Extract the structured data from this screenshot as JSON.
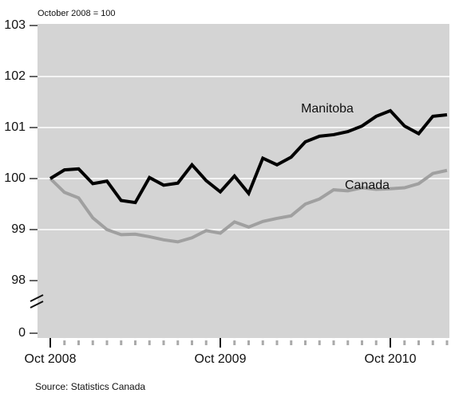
{
  "chart_data": {
    "type": "line",
    "y_label": "October 2008 = 100",
    "source": "Source: Statistics Canada",
    "categories": [
      "Oct 2008",
      null,
      null,
      null,
      null,
      null,
      null,
      null,
      null,
      null,
      null,
      null,
      "Oct 2009",
      null,
      null,
      null,
      null,
      null,
      null,
      null,
      null,
      null,
      null,
      null,
      "Oct 2010",
      null,
      null,
      null,
      null
    ],
    "series": [
      {
        "name": "Manitoba",
        "color": "#000000",
        "values": [
          100.0,
          100.17,
          100.19,
          99.9,
          99.95,
          99.57,
          99.53,
          100.02,
          99.87,
          99.91,
          100.27,
          99.96,
          99.74,
          100.05,
          99.71,
          100.4,
          100.27,
          100.42,
          100.72,
          100.83,
          100.86,
          100.92,
          101.03,
          101.22,
          101.33,
          101.03,
          100.88,
          101.22,
          101.25
        ]
      },
      {
        "name": "Canada",
        "color": "#a0a0a0",
        "values": [
          100.0,
          99.73,
          99.62,
          99.23,
          99.0,
          98.9,
          98.91,
          98.86,
          98.8,
          98.76,
          98.84,
          98.98,
          98.93,
          99.15,
          99.05,
          99.16,
          99.22,
          99.27,
          99.5,
          99.6,
          99.78,
          99.76,
          99.82,
          99.79,
          99.8,
          99.82,
          99.9,
          100.1,
          100.16
        ]
      }
    ],
    "ylim": [
      98,
      103
    ],
    "yticks": [
      0,
      98,
      99,
      100,
      101,
      102,
      103
    ],
    "axis_break": true,
    "grid": true
  }
}
